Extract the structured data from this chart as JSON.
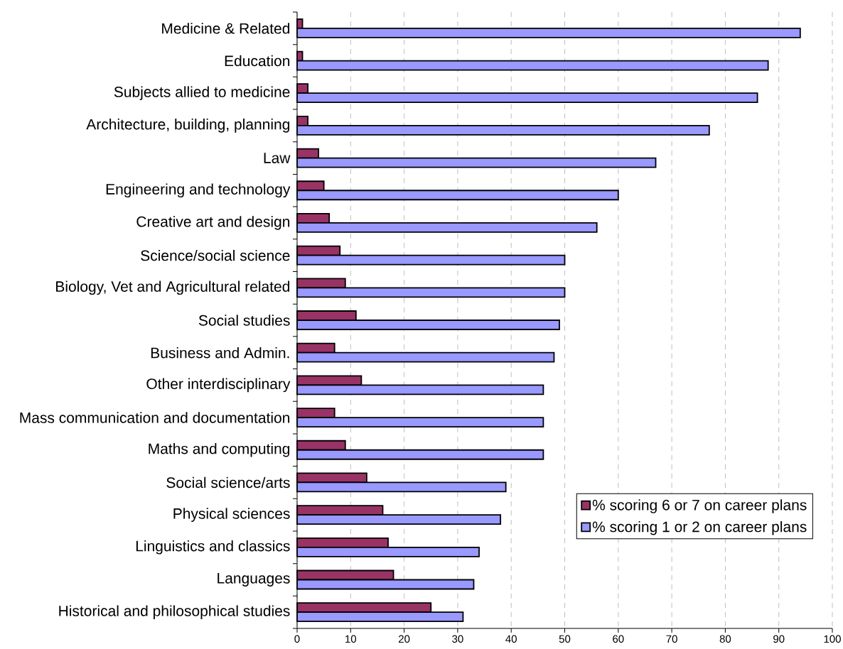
{
  "chart_data": {
    "type": "bar",
    "orientation": "horizontal",
    "categories": [
      "Medicine & Related",
      "Education",
      "Subjects allied to medicine",
      "Architecture, building, planning",
      "Law",
      "Engineering and technology",
      "Creative art and design",
      "Science/social science",
      "Biology, Vet and Agricultural related",
      "Social studies",
      "Business and Admin.",
      "Other interdisciplinary",
      "Mass communication and documentation",
      "Maths and computing",
      "Social science/arts",
      "Physical sciences",
      "Linguistics and classics",
      "Languages",
      "Historical and philosophical studies"
    ],
    "series": [
      {
        "name": "% scoring 6 or 7 on career plans",
        "color": "#993366",
        "values": [
          1,
          1,
          2,
          2,
          4,
          5,
          6,
          8,
          9,
          11,
          7,
          12,
          7,
          9,
          13,
          16,
          17,
          18,
          25
        ]
      },
      {
        "name": "% scoring 1 or 2 on career plans",
        "color": "#9999ff",
        "values": [
          94,
          88,
          86,
          77,
          67,
          60,
          56,
          50,
          50,
          49,
          48,
          46,
          46,
          46,
          39,
          38,
          34,
          33,
          31
        ]
      }
    ],
    "xlim": [
      0,
      100
    ],
    "xticks": [
      0,
      10,
      20,
      30,
      40,
      50,
      60,
      70,
      80,
      90,
      100
    ],
    "grid": "x",
    "legend": "bottom right"
  }
}
